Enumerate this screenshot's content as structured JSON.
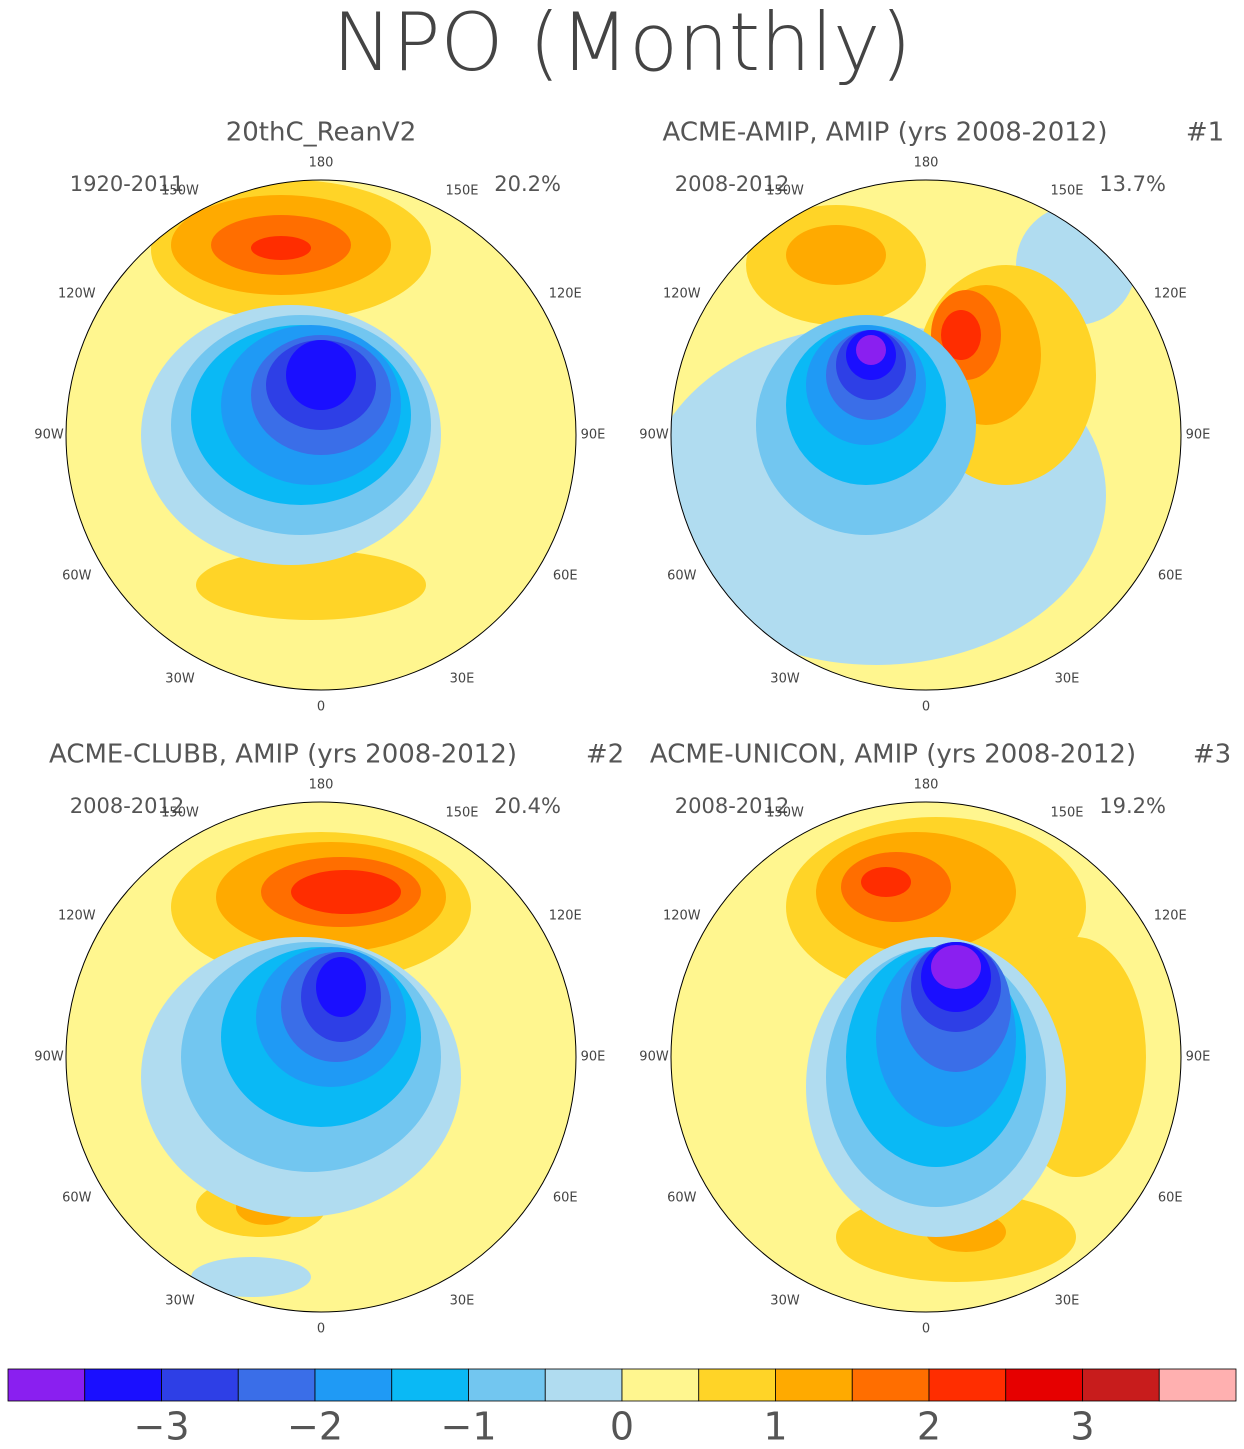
{
  "title": "NPO (Monthly)",
  "longitudes": [
    "180",
    "150E",
    "120E",
    "90E",
    "60E",
    "30E",
    "0",
    "30W",
    "60W",
    "90W",
    "120W",
    "150W"
  ],
  "panels": [
    {
      "title": "20thC_ReanV2",
      "period": "1920-2011",
      "percent": "20.2%"
    },
    {
      "title": "ACME-AMIP, AMIP (yrs 2008-2012)",
      "tag": "#1",
      "period": "2008-2012",
      "percent": "13.7%"
    },
    {
      "title": "ACME-CLUBB, AMIP (yrs 2008-2012)",
      "tag": "#2",
      "period": "2008-2012",
      "percent": "20.4%"
    },
    {
      "title": "ACME-UNICON, AMIP (yrs 2008-2012)",
      "tag": "#3",
      "period": "2008-2012",
      "percent": "19.2%"
    }
  ],
  "colorbar": {
    "range": [
      -4,
      4
    ],
    "ticks": [
      {
        "value": -3,
        "label": "−3"
      },
      {
        "value": -2,
        "label": "−2"
      },
      {
        "value": -1,
        "label": "−1"
      },
      0,
      1,
      2,
      3
    ],
    "colors": [
      "#8a1ff0",
      "#1a0fff",
      "#2e3fe6",
      "#3a6ee8",
      "#1f9af5",
      "#0ab9f5",
      "#72c6f0",
      "#b0dcf0",
      "#fff68f",
      "#ffd427",
      "#ffaa00",
      "#ff6e00",
      "#ff2d00",
      "#e60000",
      "#c81c1c",
      "#ffb0b0"
    ]
  }
}
